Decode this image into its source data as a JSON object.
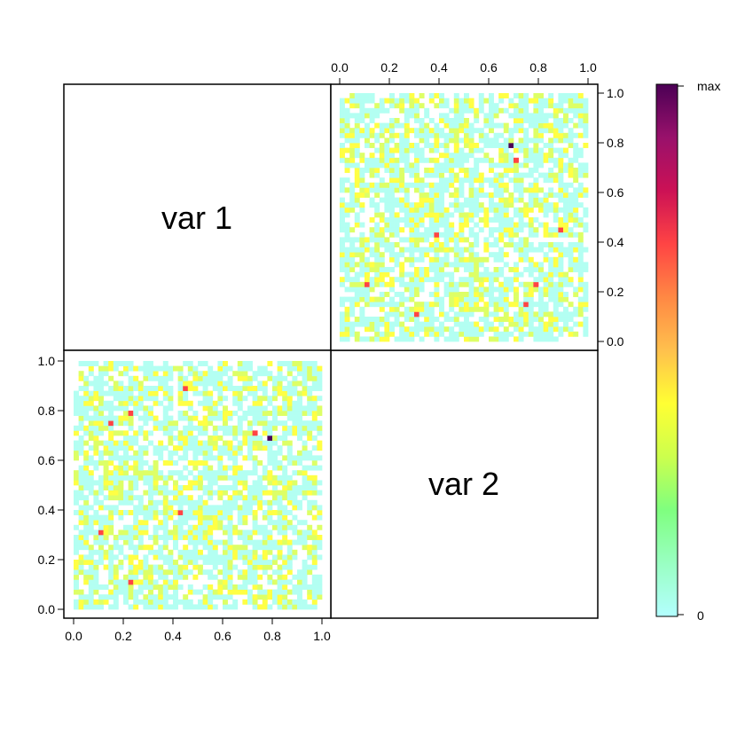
{
  "chart_data": {
    "type": "heatmap",
    "title": "",
    "variables": [
      "var 1",
      "var 2"
    ],
    "panels": [
      {
        "id": "var2-vs-var1",
        "row": 0,
        "col": 1,
        "x_variable": "var 2",
        "y_variable": "var 1",
        "xlim": [
          0,
          1
        ],
        "ylim": [
          0,
          1
        ],
        "x_axis_side": "top",
        "y_axis_side": "right"
      },
      {
        "id": "var1-vs-var2",
        "row": 1,
        "col": 0,
        "x_variable": "var 1",
        "y_variable": "var 2",
        "xlim": [
          0,
          1
        ],
        "ylim": [
          0,
          1
        ],
        "x_axis_side": "bottom",
        "y_axis_side": "left"
      }
    ],
    "ticks": [
      0.0,
      0.2,
      0.4,
      0.6,
      0.8,
      1.0
    ],
    "tick_labels": [
      "0.0",
      "0.2",
      "0.4",
      "0.6",
      "0.8",
      "1.0"
    ],
    "grid_bins": 50,
    "value_levels": [
      0,
      1,
      2,
      3
    ],
    "highlighted_cells": [
      {
        "x": 0.1,
        "y": 0.22,
        "level": 3
      },
      {
        "x": 0.31,
        "y": 0.11,
        "level": 3
      },
      {
        "x": 0.39,
        "y": 0.42,
        "level": 3
      },
      {
        "x": 0.69,
        "y": 0.78,
        "level": 4
      },
      {
        "x": 0.71,
        "y": 0.73,
        "level": 3
      },
      {
        "x": 0.74,
        "y": 0.15,
        "level": 3
      },
      {
        "x": 0.78,
        "y": 0.22,
        "level": 3
      },
      {
        "x": 0.89,
        "y": 0.44,
        "level": 3
      }
    ],
    "colorbar": {
      "min_label": "0",
      "max_label": "max",
      "colors": [
        "#b3ffff",
        "#99ffc2",
        "#7fff7f",
        "#ccff4d",
        "#ffff33",
        "#ffc04d",
        "#ff8844",
        "#ff4444",
        "#cc1155",
        "#99116b",
        "#4b0055"
      ]
    },
    "cell_colors": [
      "#b3fff2",
      "#ddff66",
      "#ffff44",
      "#ff4444",
      "#4b0055"
    ],
    "grid": false,
    "legend_position": "right"
  }
}
